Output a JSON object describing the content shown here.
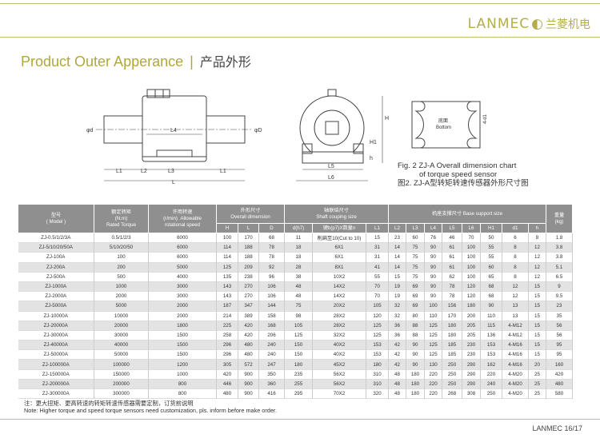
{
  "header": {
    "logo_en": "LANMEC",
    "logo_cn": "兰菱机电",
    "brand_color": "#b4ad4a"
  },
  "title": {
    "en": "Product Outer Apperance",
    "separator": "|",
    "cn": "产品外形"
  },
  "drawing": {
    "labels": {
      "phi_d": "φd",
      "phi_D": "φD",
      "L4": "L4",
      "L1": "L1",
      "L2": "L2",
      "L3": "L3",
      "L": "L",
      "H": "H",
      "H1": "H1",
      "h": "h",
      "L5": "L5",
      "L6": "L6",
      "four_d1": "4-d1",
      "bottom_cn": "底面",
      "bottom_en": "Bottom"
    }
  },
  "caption": {
    "line1": "Fig. 2   ZJ-A  Overall dimension chart",
    "line2": "of torque speed sensor",
    "line3": "图2. ZJ-A型转矩转速传感器外形尺寸图"
  },
  "table": {
    "headers": {
      "model": "型号\n( Model )",
      "torque": "额定转矩\n(N.m)\nRated Torque",
      "speed": "许用转速\n(r/min)  Allowable\nrotational speed",
      "overall": "外形尺寸\nOverall dimension",
      "shaft": "轴联结尺寸\nShaft couping size",
      "base": "机座支撑尺寸 Base support size",
      "weight": "重量\n(kg)"
    },
    "subheaders": [
      "H",
      "L",
      "D",
      "d(h7)",
      "键b(p7)X数量n",
      "L1",
      "L2",
      "L3",
      "L4",
      "L5",
      "L6",
      "H1",
      "d1",
      "h"
    ],
    "rows": [
      [
        "ZJ-0.5/1/2/3A",
        "0.5/1/2/3",
        "6000",
        "100",
        "170",
        "68",
        "11",
        "削扁至10(Cut to 10)",
        "15",
        "23",
        "60",
        "76",
        "46",
        "70",
        "50",
        "6",
        "8",
        "1.8"
      ],
      [
        "ZJ-5/10/20/50A",
        "5/10/20/50",
        "6000",
        "114",
        "188",
        "78",
        "18",
        "6X1",
        "31",
        "14",
        "75",
        "90",
        "61",
        "100",
        "55",
        "8",
        "12",
        "3.8"
      ],
      [
        "ZJ-100A",
        "100",
        "6000",
        "114",
        "188",
        "78",
        "18",
        "6X1",
        "31",
        "14",
        "75",
        "90",
        "61",
        "100",
        "55",
        "8",
        "12",
        "3.8"
      ],
      [
        "ZJ-200A",
        "200",
        "5000",
        "125",
        "209",
        "92",
        "28",
        "8X1",
        "41",
        "14",
        "75",
        "90",
        "61",
        "100",
        "60",
        "8",
        "12",
        "5.1"
      ],
      [
        "ZJ-500A",
        "500",
        "4000",
        "135",
        "238",
        "96",
        "38",
        "10X2",
        "55",
        "15",
        "75",
        "90",
        "62",
        "100",
        "65",
        "8",
        "12",
        "6.5"
      ],
      [
        "ZJ-1000A",
        "1000",
        "3000",
        "143",
        "270",
        "106",
        "48",
        "14X2",
        "70",
        "19",
        "69",
        "90",
        "78",
        "120",
        "68",
        "12",
        "15",
        "9"
      ],
      [
        "ZJ-2000A",
        "2000",
        "3000",
        "143",
        "270",
        "106",
        "48",
        "14X2",
        "70",
        "19",
        "69",
        "90",
        "78",
        "120",
        "68",
        "12",
        "15",
        "9.5"
      ],
      [
        "ZJ-5000A",
        "5000",
        "2000",
        "187",
        "347",
        "144",
        "75",
        "20X2",
        "105",
        "32",
        "69",
        "100",
        "156",
        "180",
        "90",
        "13",
        "15",
        "23"
      ],
      [
        "ZJ-10000A",
        "10000",
        "2000",
        "214",
        "389",
        "158",
        "98",
        "28X2",
        "120",
        "32",
        "80",
        "110",
        "170",
        "200",
        "110",
        "13",
        "15",
        "35"
      ],
      [
        "ZJ-20000A",
        "20000",
        "1800",
        "225",
        "420",
        "168",
        "105",
        "28X2",
        "125",
        "36",
        "88",
        "125",
        "180",
        "205",
        "115",
        "4-M12",
        "15",
        "56"
      ],
      [
        "ZJ-30000A",
        "30000",
        "1500",
        "258",
        "420",
        "206",
        "125",
        "32X2",
        "125",
        "36",
        "88",
        "125",
        "180",
        "205",
        "136",
        "4-M12",
        "15",
        "56"
      ],
      [
        "ZJ-40000A",
        "40000",
        "1500",
        "296",
        "480",
        "240",
        "150",
        "40X2",
        "153",
        "42",
        "90",
        "125",
        "185",
        "230",
        "153",
        "4-M16",
        "15",
        "95"
      ],
      [
        "ZJ-50000A",
        "50000",
        "1500",
        "296",
        "480",
        "240",
        "150",
        "40X2",
        "153",
        "42",
        "90",
        "125",
        "185",
        "230",
        "153",
        "4-M16",
        "15",
        "95"
      ],
      [
        "ZJ-100000A",
        "100000",
        "1200",
        "305",
        "572",
        "247",
        "180",
        "45X2",
        "180",
        "42",
        "90",
        "130",
        "250",
        "290",
        "162",
        "4-M16",
        "20",
        "160"
      ],
      [
        "ZJ-150000A",
        "150000",
        "1000",
        "420",
        "900",
        "350",
        "235",
        "56X2",
        "310",
        "48",
        "180",
        "220",
        "250",
        "290",
        "220",
        "4-M20",
        "25",
        "420"
      ],
      [
        "ZJ-200000A",
        "200000",
        "800",
        "446",
        "900",
        "360",
        "255",
        "56X2",
        "310",
        "48",
        "180",
        "220",
        "250",
        "290",
        "240",
        "4-M20",
        "25",
        "480"
      ],
      [
        "ZJ-300000A",
        "300000",
        "800",
        "480",
        "900",
        "416",
        "295",
        "70X2",
        "320",
        "48",
        "180",
        "220",
        "268",
        "308",
        "250",
        "4-M20",
        "25",
        "580"
      ]
    ]
  },
  "note": {
    "cn": "注：更大扭矩、更高转速的转矩转速传感器需要定制，订货前说明",
    "en": "Note: Higher torque and speed torque sensors need customization, pls. inform before make order."
  },
  "footer": {
    "page": "LANMEC 16/17"
  }
}
